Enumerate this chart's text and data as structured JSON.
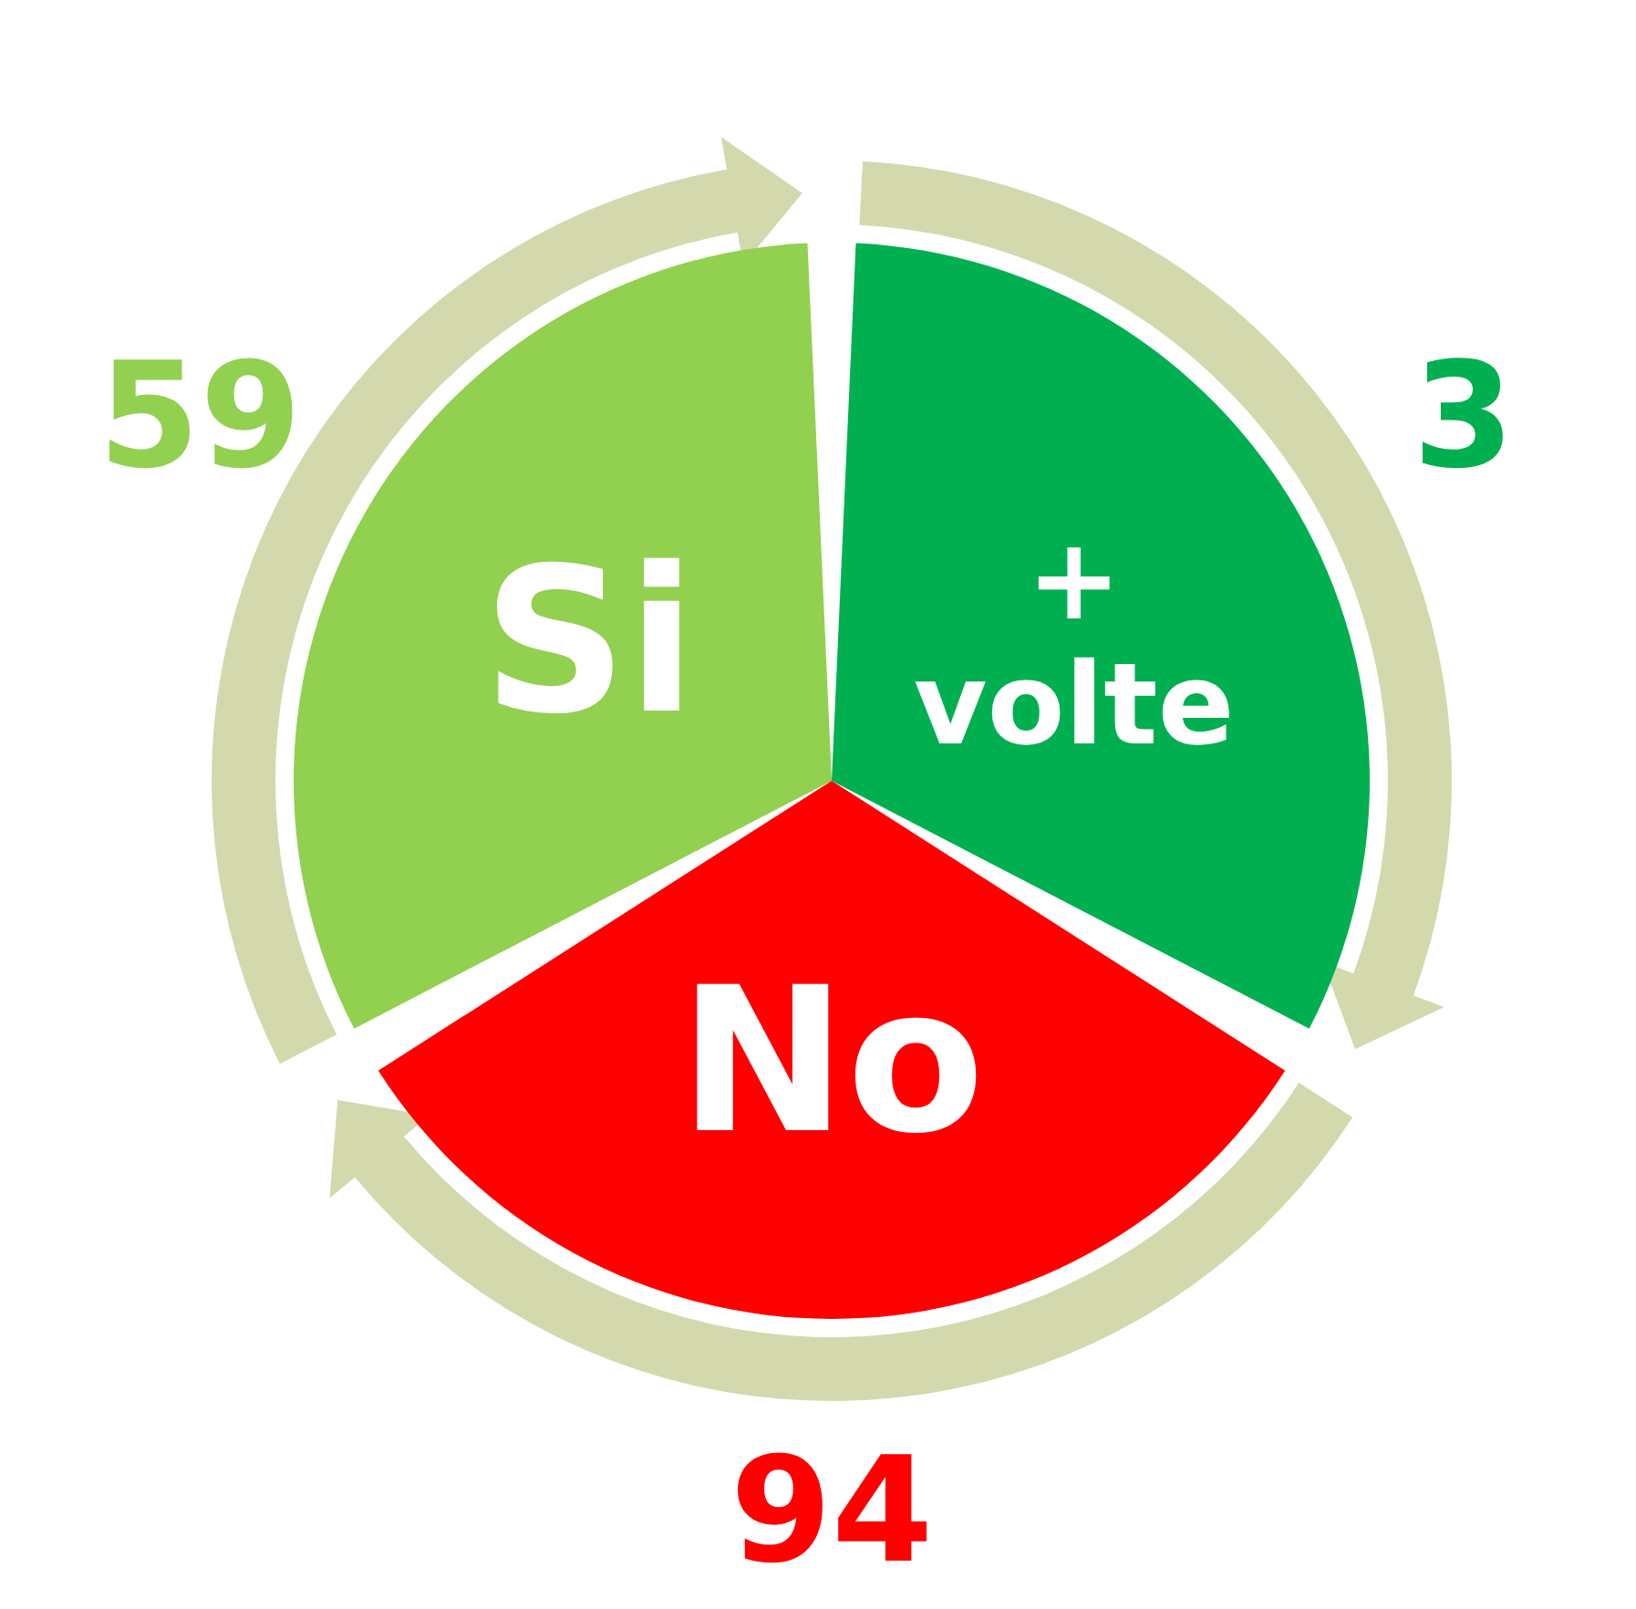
{
  "chart_data": {
    "type": "other",
    "categories": [
      "Si",
      "+ volte",
      "No"
    ],
    "values": [
      59,
      3,
      94
    ],
    "colors": [
      "#92d050",
      "#00b050",
      "#ff0000"
    ],
    "data_labels": true
  }
}
